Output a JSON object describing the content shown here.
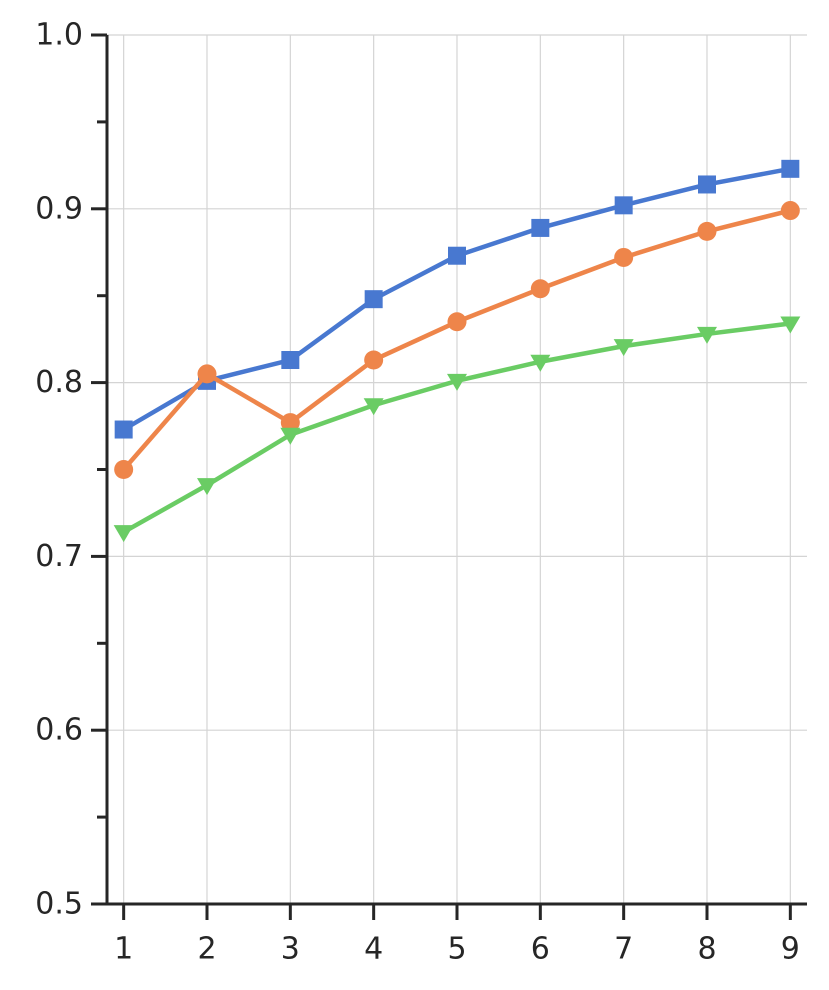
{
  "chart_data": {
    "type": "line",
    "title": "",
    "xlabel": "",
    "ylabel": "",
    "x": [
      1,
      2,
      3,
      4,
      5,
      6,
      7,
      8,
      9
    ],
    "xlim": [
      0.8,
      9.2
    ],
    "ylim": [
      0.5,
      1.0
    ],
    "x_ticks": [
      "1",
      "2",
      "3",
      "4",
      "5",
      "6",
      "7",
      "8",
      "9"
    ],
    "y_ticks": [
      "0.5",
      "0.6",
      "0.7",
      "0.8",
      "0.9",
      "1.0"
    ],
    "y_minor_ticks": [
      0.55,
      0.65,
      0.75,
      0.85,
      0.95
    ],
    "grid": true,
    "legend": "none",
    "series": [
      {
        "marker": "square",
        "color": "#4878d0",
        "values": [
          0.773,
          0.801,
          0.813,
          0.848,
          0.873,
          0.889,
          0.902,
          0.914,
          0.923
        ]
      },
      {
        "marker": "circle",
        "color": "#ee854a",
        "values": [
          0.75,
          0.805,
          0.777,
          0.813,
          0.835,
          0.854,
          0.872,
          0.887,
          0.899
        ]
      },
      {
        "marker": "triangle-down",
        "color": "#6acc64",
        "values": [
          0.714,
          0.741,
          0.77,
          0.787,
          0.801,
          0.812,
          0.821,
          0.828,
          0.834
        ]
      }
    ]
  }
}
